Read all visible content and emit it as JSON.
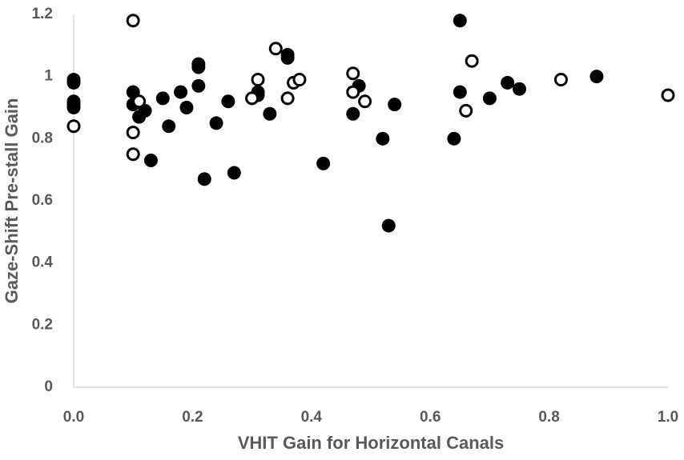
{
  "chart_data": {
    "type": "scatter",
    "x_label": "VHIT Gain for Horizontal Canals",
    "y_label": "Gaze-Shift Pre-stall Gain",
    "xlim": [
      0,
      1.0
    ],
    "ylim": [
      0,
      1.2
    ],
    "xticks": [
      {
        "value": 0,
        "label": "0.0"
      },
      0.2,
      0.4,
      0.6,
      0.8,
      {
        "value": 1.0,
        "label": "1.0"
      }
    ],
    "yticks": [
      0,
      0.2,
      0.4,
      0.6,
      0.8,
      1,
      1.2
    ],
    "grid": false,
    "series": [
      {
        "color": "#000000",
        "filled": true,
        "x": [
          0,
          0,
          0,
          0,
          0,
          0.1,
          0.1,
          0.11,
          0.12,
          0.13,
          0.15,
          0.16,
          0.18,
          0.19,
          0.21,
          0.21,
          0.21,
          0.22,
          0.24,
          0.26,
          0.27,
          0.31,
          0.31,
          0.33,
          0.36,
          0.36,
          0.42,
          0.47,
          0.48,
          0.52,
          0.53,
          0.54,
          0.64,
          0.65,
          0.65,
          0.7,
          0.73,
          0.75,
          0.88
        ],
        "values": [
          0.99,
          0.98,
          0.92,
          0.91,
          0.9,
          0.95,
          0.91,
          0.87,
          0.89,
          0.73,
          0.93,
          0.84,
          0.95,
          0.9,
          1.04,
          1.03,
          0.97,
          0.67,
          0.85,
          0.92,
          0.69,
          0.94,
          0.95,
          0.88,
          1.07,
          1.06,
          0.72,
          0.88,
          0.97,
          0.8,
          0.52,
          0.91,
          0.8,
          1.18,
          0.95,
          0.93,
          0.98,
          0.96,
          1.0
        ]
      },
      {
        "color": "#000000",
        "filled": false,
        "x": [
          0,
          0.1,
          0.1,
          0.1,
          0.11,
          0.3,
          0.31,
          0.34,
          0.36,
          0.37,
          0.38,
          0.47,
          0.47,
          0.49,
          0.66,
          0.67,
          0.82,
          1.0
        ],
        "values": [
          0.84,
          1.18,
          0.82,
          0.75,
          0.92,
          0.93,
          0.99,
          1.09,
          0.93,
          0.98,
          0.99,
          1.01,
          0.95,
          0.92,
          0.89,
          1.05,
          0.99,
          0.94
        ]
      }
    ]
  }
}
